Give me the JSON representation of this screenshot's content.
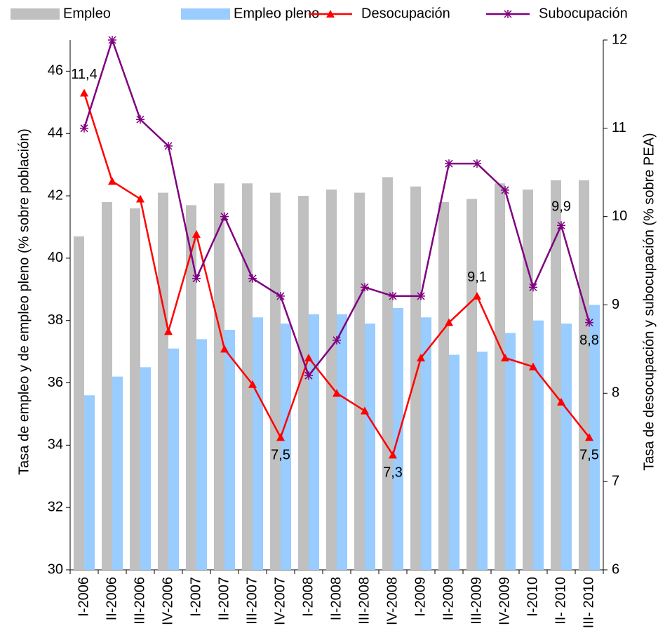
{
  "chart_data": {
    "type": "bar-line",
    "y_label": "Tasa de empleo y de empleo pleno (% sobre población)",
    "y2_label": "Tasa de desocupación y subocupación (% sobre PEA)",
    "categories": [
      "I-2006",
      "II-2006",
      "III-2006",
      "IV-2006",
      "I-2007",
      "II-2007",
      "III-2007",
      "IV-2007",
      "I-2008",
      "II-2008",
      "III-2008",
      "IV-2008",
      "I-2009",
      "II-2009",
      "III-2009",
      "IV-2009",
      "I-2010",
      "II- 2010",
      "III- 2010"
    ],
    "ylim": [
      30,
      47
    ],
    "yticks": [
      30,
      32,
      34,
      36,
      38,
      40,
      42,
      44,
      46
    ],
    "y2lim": [
      6,
      12
    ],
    "y2ticks": [
      6,
      7,
      8,
      9,
      10,
      11,
      12
    ],
    "grid": false,
    "legend": "top",
    "series": [
      {
        "name": "Empleo",
        "type": "bar",
        "color": "#c0c0c0",
        "values": [
          40.7,
          41.8,
          41.6,
          42.1,
          41.7,
          42.4,
          42.4,
          42.1,
          42.0,
          42.2,
          42.1,
          42.6,
          42.3,
          41.8,
          41.9,
          42.4,
          42.2,
          42.5,
          42.5
        ]
      },
      {
        "name": "Empleo pleno",
        "type": "bar",
        "color": "#99ccff",
        "values": [
          35.6,
          36.2,
          36.5,
          37.1,
          37.4,
          37.7,
          38.1,
          37.9,
          38.2,
          38.2,
          37.9,
          38.4,
          38.1,
          36.9,
          37.0,
          37.6,
          38.0,
          37.9,
          38.5
        ]
      },
      {
        "name": "Desocupación",
        "type": "line",
        "marker": "triangle",
        "axis": "y2",
        "color": "#ff0000",
        "values": [
          11.4,
          10.4,
          10.2,
          8.7,
          9.8,
          8.5,
          8.1,
          7.5,
          8.4,
          8.0,
          7.8,
          7.3,
          8.4,
          8.8,
          9.1,
          8.4,
          8.3,
          7.9,
          7.5
        ],
        "value_labels": [
          "11,4",
          null,
          null,
          null,
          null,
          null,
          null,
          "7,5",
          null,
          null,
          null,
          "7,3",
          null,
          null,
          "9,1",
          null,
          null,
          null,
          "7,5"
        ]
      },
      {
        "name": "Subocupación",
        "type": "line",
        "marker": "star",
        "axis": "y2",
        "color": "#800080",
        "values": [
          11.0,
          12.0,
          11.1,
          10.8,
          9.3,
          10.0,
          9.3,
          9.1,
          8.2,
          8.6,
          9.2,
          9.1,
          9.1,
          10.6,
          10.6,
          10.3,
          9.2,
          9.9,
          8.8
        ],
        "value_labels": [
          null,
          null,
          null,
          null,
          null,
          null,
          null,
          null,
          null,
          null,
          null,
          null,
          null,
          null,
          null,
          null,
          null,
          "9,9",
          "8,8"
        ]
      }
    ]
  }
}
